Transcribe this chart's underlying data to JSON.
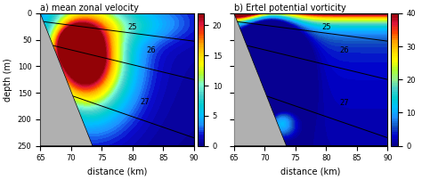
{
  "title_a": "a) mean zonal velocity",
  "title_b": "b) Ertel potential vorticity",
  "xlabel": "distance (km)",
  "ylabel": "depth (m)",
  "xlim": [
    65,
    90
  ],
  "ylim_deep": 250,
  "xticks": [
    65,
    70,
    75,
    80,
    85,
    90
  ],
  "yticks": [
    0,
    50,
    100,
    150,
    200,
    250
  ],
  "cbar_a_ticks": [
    0,
    5,
    10,
    15,
    20
  ],
  "cbar_b_ticks": [
    0,
    10,
    20,
    30,
    40
  ],
  "vel_max": 22,
  "epv_max": 40,
  "bathy_x0": 65.0,
  "bathy_x1": 73.5,
  "bathy_d0": 0.0,
  "bathy_d1": 250.0,
  "bathy_color": "#b0b0b0",
  "fig_bg": "#ffffff"
}
